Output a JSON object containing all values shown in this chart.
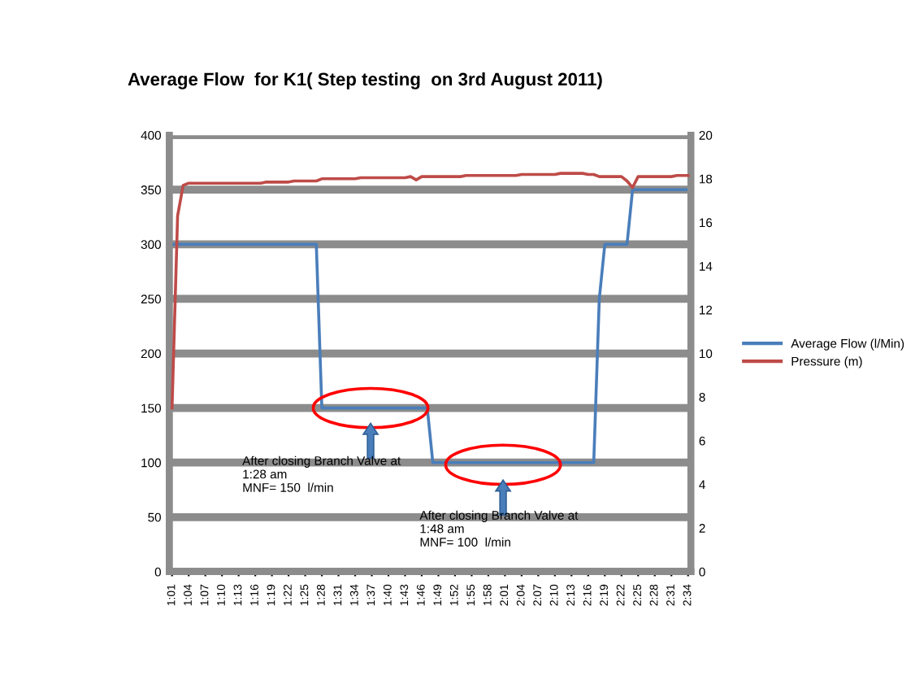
{
  "chart_data": {
    "type": "line",
    "title": "Average Flow  for K1( Step testing  on 3rd August 2011)",
    "categories": [
      "1:01",
      null,
      null,
      "1:04",
      null,
      null,
      "1:07",
      null,
      null,
      "1:10",
      null,
      null,
      "1:13",
      null,
      null,
      "1:16",
      null,
      null,
      "1:19",
      null,
      null,
      "1:22",
      null,
      null,
      "1:25",
      null,
      null,
      "1:28",
      null,
      null,
      "1:31",
      null,
      null,
      "1:34",
      null,
      null,
      "1:37",
      null,
      null,
      "1:40",
      null,
      null,
      "1:43",
      null,
      null,
      "1:46",
      null,
      null,
      "1:49",
      null,
      null,
      "1:52",
      null,
      null,
      "1:55",
      null,
      null,
      "1:58",
      null,
      null,
      "2:01",
      null,
      null,
      "2:04",
      null,
      null,
      "2:07",
      null,
      null,
      "2:10",
      null,
      null,
      "2:13",
      null,
      null,
      "2:16",
      null,
      null,
      "2:19",
      null,
      null,
      "2:22",
      null,
      null,
      "2:25",
      null,
      null,
      "2:28",
      null,
      null,
      "2:31",
      null,
      null,
      "2:34"
    ],
    "series": [
      {
        "name": "Average Flow (l/Min)",
        "color": "#4a7ebb",
        "values": [
          300,
          300,
          300,
          300,
          300,
          300,
          300,
          300,
          300,
          300,
          300,
          300,
          300,
          300,
          300,
          300,
          300,
          300,
          300,
          300,
          300,
          300,
          300,
          300,
          300,
          300,
          300,
          150,
          150,
          150,
          150,
          150,
          150,
          150,
          150,
          150,
          150,
          150,
          150,
          150,
          150,
          150,
          150,
          150,
          150,
          150,
          150,
          100,
          100,
          100,
          100,
          100,
          100,
          100,
          100,
          100,
          100,
          100,
          100,
          100,
          100,
          100,
          100,
          100,
          100,
          100,
          100,
          100,
          100,
          100,
          100,
          100,
          100,
          100,
          100,
          100,
          100,
          250,
          300,
          300,
          300,
          300,
          300,
          350,
          350,
          350,
          350,
          350,
          350,
          350,
          350,
          350,
          350,
          350
        ]
      },
      {
        "name": "Pressure (m)",
        "color": "#be4b48",
        "axis": "y2",
        "values": [
          7.5,
          16.3,
          17.7,
          17.8,
          17.8,
          17.8,
          17.8,
          17.8,
          17.8,
          17.8,
          17.8,
          17.8,
          17.8,
          17.8,
          17.8,
          17.8,
          17.8,
          17.85,
          17.85,
          17.85,
          17.85,
          17.85,
          17.9,
          17.9,
          17.9,
          17.9,
          17.9,
          18.0,
          18.0,
          18.0,
          18.0,
          18.0,
          18.0,
          18.0,
          18.05,
          18.05,
          18.05,
          18.05,
          18.05,
          18.05,
          18.05,
          18.05,
          18.05,
          18.1,
          17.95,
          18.1,
          18.1,
          18.1,
          18.1,
          18.1,
          18.1,
          18.1,
          18.1,
          18.15,
          18.15,
          18.15,
          18.15,
          18.15,
          18.15,
          18.15,
          18.15,
          18.15,
          18.15,
          18.2,
          18.2,
          18.2,
          18.2,
          18.2,
          18.2,
          18.2,
          18.25,
          18.25,
          18.25,
          18.25,
          18.25,
          18.2,
          18.2,
          18.1,
          18.1,
          18.1,
          18.1,
          18.1,
          17.9,
          17.6,
          18.1,
          18.1,
          18.1,
          18.1,
          18.1,
          18.1,
          18.1,
          18.15,
          18.15,
          18.15
        ]
      }
    ],
    "ylim": [
      0,
      400
    ],
    "yticks": [
      0,
      50,
      100,
      150,
      200,
      250,
      300,
      350,
      400
    ],
    "y2lim": [
      0,
      20
    ],
    "y2ticks": [
      0,
      2,
      4,
      6,
      8,
      10,
      12,
      14,
      16,
      18,
      20
    ],
    "grid": "y",
    "legend": "right",
    "annotations": [
      "After closing Branch Valve at\n1:28 am\nMNF= 150  l/min",
      "After closing Branch Valve at\n1:48 am\nMNF= 100  l/min"
    ]
  }
}
